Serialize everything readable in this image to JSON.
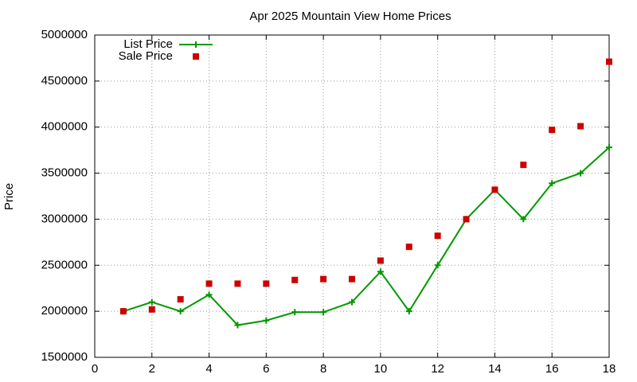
{
  "chart_data": {
    "type": "scatter",
    "title": "Apr 2025 Mountain View Home Prices",
    "y_label": "Price",
    "x": [
      1,
      2,
      3,
      4,
      5,
      6,
      7,
      8,
      9,
      10,
      11,
      12,
      13,
      14,
      15,
      16,
      17,
      18
    ],
    "series": [
      {
        "name": "List Price",
        "color": "#009900",
        "style": "linespoints",
        "values": [
          2000000,
          2100000,
          2000000,
          2180000,
          1850000,
          1900000,
          1990000,
          1990000,
          2100000,
          2430000,
          2000000,
          2500000,
          3000000,
          3320000,
          3000000,
          3390000,
          3500000,
          3780000
        ]
      },
      {
        "name": "Sale Price",
        "color": "#cc0000",
        "style": "points",
        "values": [
          2000000,
          2020000,
          2130000,
          2300000,
          2300000,
          2300000,
          2340000,
          2350000,
          2350000,
          2550000,
          2700000,
          2820000,
          3000000,
          3320000,
          3590000,
          3970000,
          4010000,
          4710000
        ]
      }
    ],
    "xlim": [
      0,
      18
    ],
    "xticks": [
      0,
      2,
      4,
      6,
      8,
      10,
      12,
      14,
      16,
      18
    ],
    "ylim": [
      1500000,
      5000000
    ],
    "yticks": [
      1500000,
      2000000,
      2500000,
      3000000,
      3500000,
      4000000,
      4500000,
      5000000
    ],
    "grid": true,
    "legend": "top-left"
  }
}
